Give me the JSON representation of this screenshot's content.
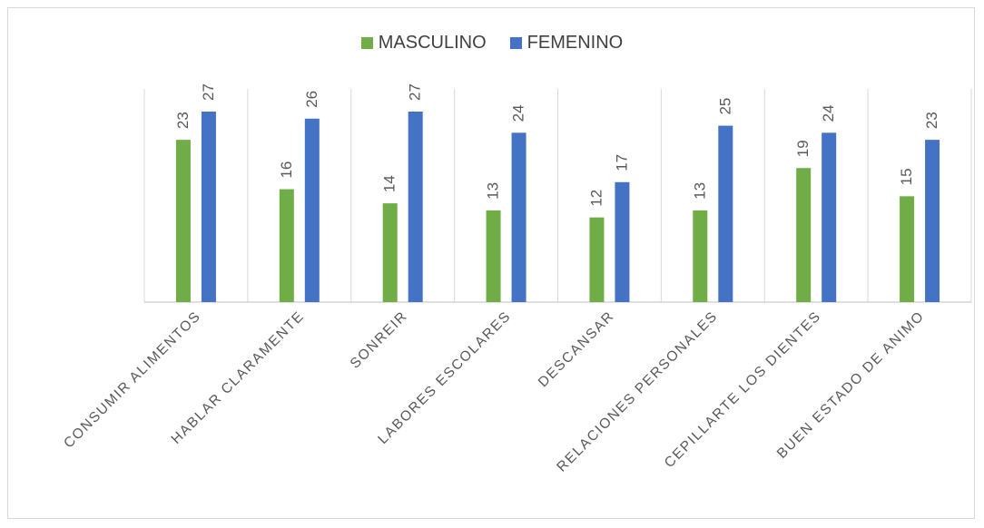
{
  "chart_data": {
    "type": "bar",
    "categories": [
      "CONSUMIR ALIMENTOS",
      "HABLAR CLARAMENTE",
      "SONREIR",
      "LABORES ESCOLARES",
      "DESCANSAR",
      "RELACIONES PERSONALES",
      "CEPILLARTE LOS DIENTES",
      "BUEN ESTADO DE ANIMO"
    ],
    "series": [
      {
        "name": "MASCULINO",
        "color": "#70ad47",
        "values": [
          23,
          16,
          14,
          13,
          12,
          13,
          19,
          15
        ]
      },
      {
        "name": "FEMENINO",
        "color": "#4472c4",
        "values": [
          27,
          26,
          27,
          24,
          17,
          25,
          24,
          23
        ]
      }
    ],
    "ylim": [
      0,
      27
    ],
    "grid": false,
    "legend_position": "top"
  }
}
